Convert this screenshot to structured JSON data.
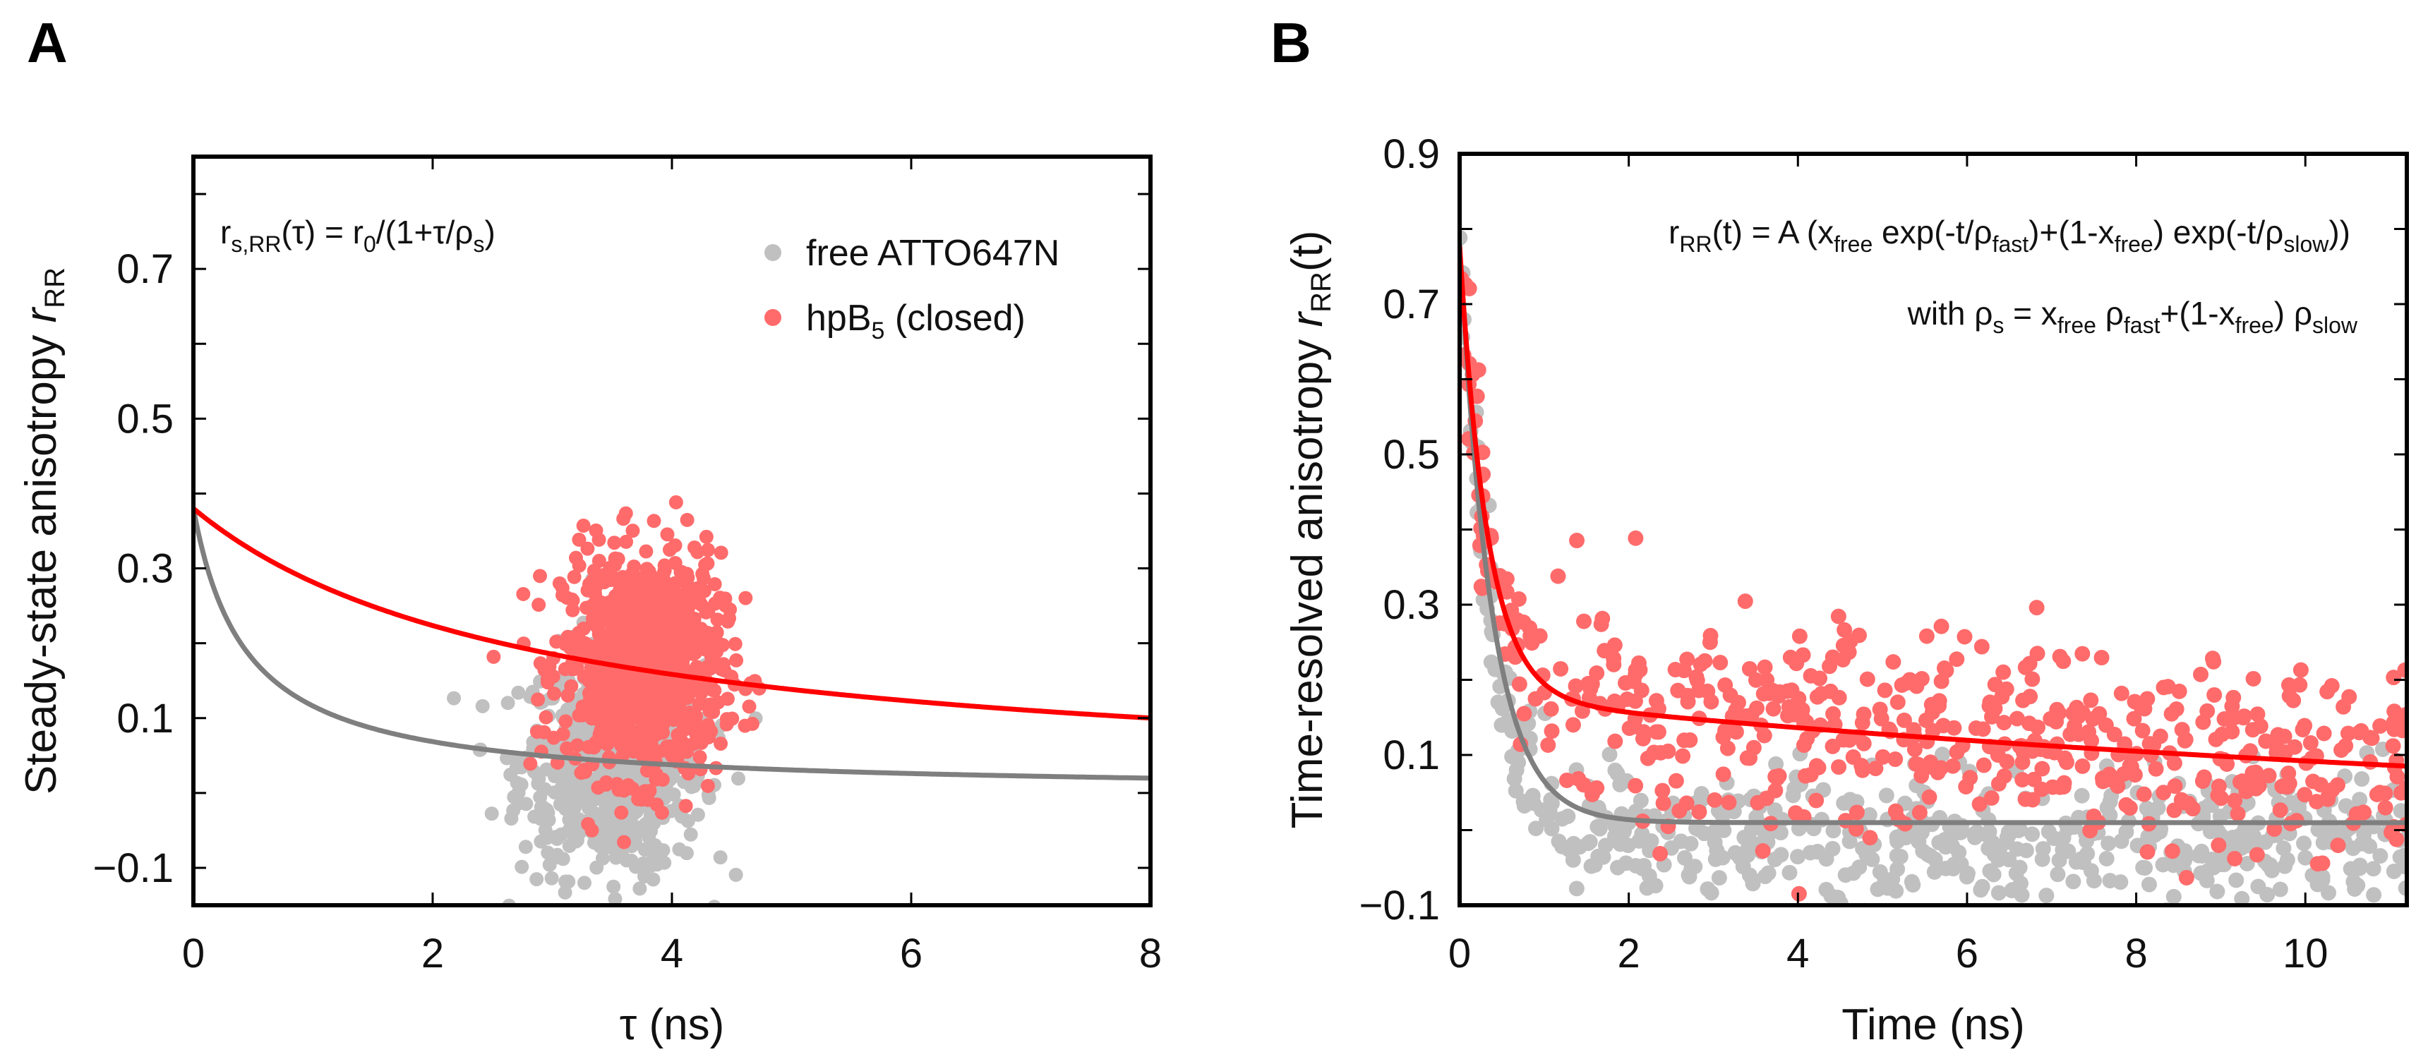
{
  "colors": {
    "free_dots": "#c0c0c0",
    "closed_dots": "#ff6b6b",
    "closed_fit": "#ff0000",
    "free_fit": "#7f7f7f"
  },
  "chart_data": [
    {
      "panel": "A",
      "type": "scatter",
      "xlabel": "τ (ns)",
      "ylabel_main": "Steady-state anisotropy ",
      "ylabel_var": "r",
      "ylabel_sub": "RR",
      "xlim": [
        0,
        8
      ],
      "ylim": [
        -0.15,
        0.85
      ],
      "xticks": [
        0,
        2,
        4,
        6,
        8
      ],
      "yticks": [
        -0.1,
        0.1,
        0.3,
        0.5,
        0.7
      ],
      "ytick_labels": [
        "−0.1",
        "0.1",
        "0.3",
        "0.5",
        "0.7"
      ],
      "grid": false,
      "legend_position": "top-right",
      "annotation": [
        [
          "r",
          ""
        ],
        [
          "s,RR",
          "sub"
        ],
        [
          "(τ) = r",
          ""
        ],
        [
          "0",
          "sub"
        ],
        [
          "/(1+τ/ρ",
          ""
        ],
        [
          "s",
          "sub"
        ],
        [
          ")",
          ""
        ]
      ],
      "series": [
        {
          "name": "free ATTO647N",
          "legend_main": "free ATTO647N",
          "kind": "scatter",
          "n": 700,
          "x_mean": 3.5,
          "x_sd": 0.38,
          "y_mean": 0.04,
          "y_sd": 0.075
        },
        {
          "name": "hpB5 (closed)",
          "legend_main": "hpB",
          "legend_sub": "5",
          "legend_rest": " (closed)",
          "kind": "scatter",
          "n": 900,
          "x_mean": 3.75,
          "x_sd": 0.33,
          "y_mean": 0.17,
          "y_sd": 0.075
        }
      ],
      "fits": [
        {
          "name": "free ATTO647N fit",
          "model": "perrin",
          "r0": 0.38,
          "rho_s": 0.44
        },
        {
          "name": "hpB5 (closed) fit",
          "model": "perrin",
          "r0": 0.38,
          "rho_s": 2.86
        }
      ]
    },
    {
      "panel": "B",
      "type": "scatter",
      "xlabel": "Time (ns)",
      "ylabel_main": "Time-resolved anisotropy ",
      "ylabel_var": "r",
      "ylabel_sub": "RR",
      "ylabel_rest": "(t)",
      "xlim": [
        0,
        11.2
      ],
      "ylim": [
        -0.1,
        0.9
      ],
      "xticks": [
        0,
        2,
        4,
        6,
        8,
        10
      ],
      "yticks": [
        -0.1,
        0.1,
        0.3,
        0.5,
        0.7,
        0.9
      ],
      "ytick_labels": [
        "−0.1",
        "0.1",
        "0.3",
        "0.5",
        "0.7",
        "0.9"
      ],
      "grid": false,
      "annotation": [
        [
          "r",
          ""
        ],
        [
          "RR",
          "sub"
        ],
        [
          "(t) = A (x",
          ""
        ],
        [
          "free",
          "sub"
        ],
        [
          " exp(-t/ρ",
          ""
        ],
        [
          "fast",
          "sub"
        ],
        [
          ")+(1-x",
          ""
        ],
        [
          "free",
          "sub"
        ],
        [
          ") exp(-t/ρ",
          ""
        ],
        [
          "slow",
          "sub"
        ],
        [
          "))",
          ""
        ]
      ],
      "annotation2": [
        [
          "with  ρ",
          ""
        ],
        [
          "s",
          "sub"
        ],
        [
          " = x",
          ""
        ],
        [
          "free",
          "sub"
        ],
        [
          " ρ",
          ""
        ],
        [
          "fast",
          "sub"
        ],
        [
          "+(1-x",
          ""
        ],
        [
          "free",
          "sub"
        ],
        [
          ") ρ",
          ""
        ],
        [
          "slow",
          "sub"
        ]
      ],
      "series": [
        {
          "name": "free ATTO647N",
          "kind": "scatter",
          "n": 560,
          "noise_sd": 0.045
        },
        {
          "name": "hpB5 (closed)",
          "kind": "scatter",
          "n": 560,
          "noise_sd": 0.065
        }
      ],
      "fits": [
        {
          "name": "free ATTO647N fit",
          "model": "biexp",
          "fast_amp": 0.77,
          "rho_fast": 0.38,
          "slow_amp": 0.01,
          "rho_slow": 1000
        },
        {
          "name": "hpB5 (closed) fit",
          "model": "biexp",
          "fast_amp": 0.6,
          "rho_fast": 0.33,
          "slow_amp": 0.177,
          "rho_slow": 15.3
        }
      ]
    }
  ],
  "panel_labels": [
    "A",
    "B"
  ]
}
